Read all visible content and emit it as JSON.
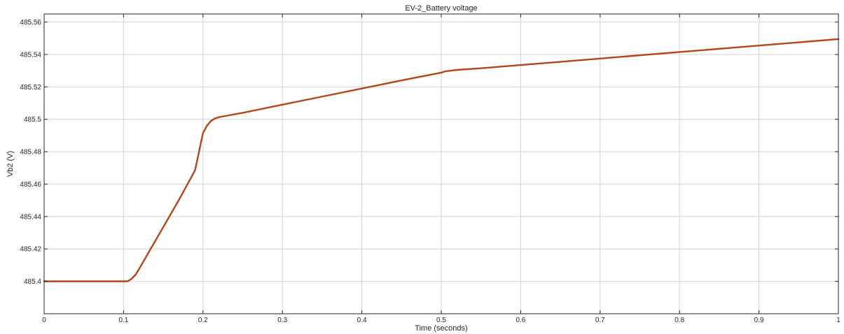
{
  "chart_data": {
    "type": "line",
    "title": "EV-2_Battery voltage",
    "xlabel": "Time (seconds)",
    "ylabel": "Vb2 (V)",
    "xlim": [
      0,
      1
    ],
    "ylim": [
      485.38,
      485.565
    ],
    "grid": true,
    "x_ticks": [
      0,
      0.1,
      0.2,
      0.3,
      0.4,
      0.5,
      0.6,
      0.7,
      0.8,
      0.9,
      1
    ],
    "x_tick_labels": [
      "0",
      "0.1",
      "0.2",
      "0.3",
      "0.4",
      "0.5",
      "0.6",
      "0.7",
      "0.8",
      "0.9",
      "1"
    ],
    "y_ticks": [
      485.4,
      485.42,
      485.44,
      485.46,
      485.48,
      485.5,
      485.52,
      485.54,
      485.56
    ],
    "y_tick_labels": [
      "485.4",
      "485.42",
      "485.44",
      "485.46",
      "485.48",
      "485.5",
      "485.52",
      "485.54",
      "485.56"
    ],
    "series": [
      {
        "color": "#b5461a",
        "x": [
          0,
          0.05,
          0.1,
          0.105,
          0.11,
          0.115,
          0.12,
          0.13,
          0.14,
          0.15,
          0.16,
          0.17,
          0.18,
          0.19,
          0.2,
          0.205,
          0.21,
          0.215,
          0.22,
          0.23,
          0.25,
          0.3,
          0.35,
          0.4,
          0.45,
          0.5,
          0.505,
          0.51,
          0.52,
          0.55,
          0.6,
          0.7,
          0.8,
          0.9,
          1.0
        ],
        "y": [
          485.4,
          485.4,
          485.4,
          485.4,
          485.4015,
          485.404,
          485.408,
          485.4165,
          485.425,
          485.4335,
          485.442,
          485.4505,
          485.4595,
          485.4685,
          485.4915,
          485.496,
          485.499,
          485.5005,
          485.5013,
          485.5022,
          485.504,
          485.509,
          485.514,
          485.519,
          485.524,
          485.5288,
          485.5296,
          485.5299,
          485.5305,
          485.5315,
          485.5335,
          485.5375,
          485.5415,
          485.5455,
          485.5495
        ]
      }
    ]
  }
}
